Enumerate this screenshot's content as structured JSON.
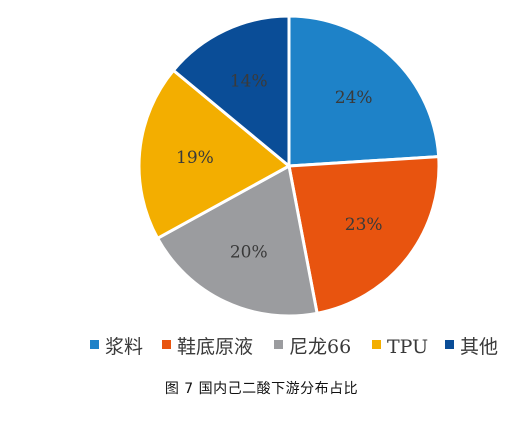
{
  "chart_data": {
    "type": "pie",
    "title": "",
    "categories": [
      "浆料",
      "鞋底原液",
      "尼龙66",
      "TPU",
      "其他"
    ],
    "values": [
      24,
      23,
      20,
      19,
      14
    ],
    "labels": [
      "24%",
      "23%",
      "20%",
      "19%",
      "14%"
    ],
    "colors": [
      "#1E82C8",
      "#E8540F",
      "#9B9C9F",
      "#F3AE00",
      "#0A4D97"
    ],
    "legend_position": "bottom"
  },
  "caption": "图 7   国内己二酸下游分布占比"
}
